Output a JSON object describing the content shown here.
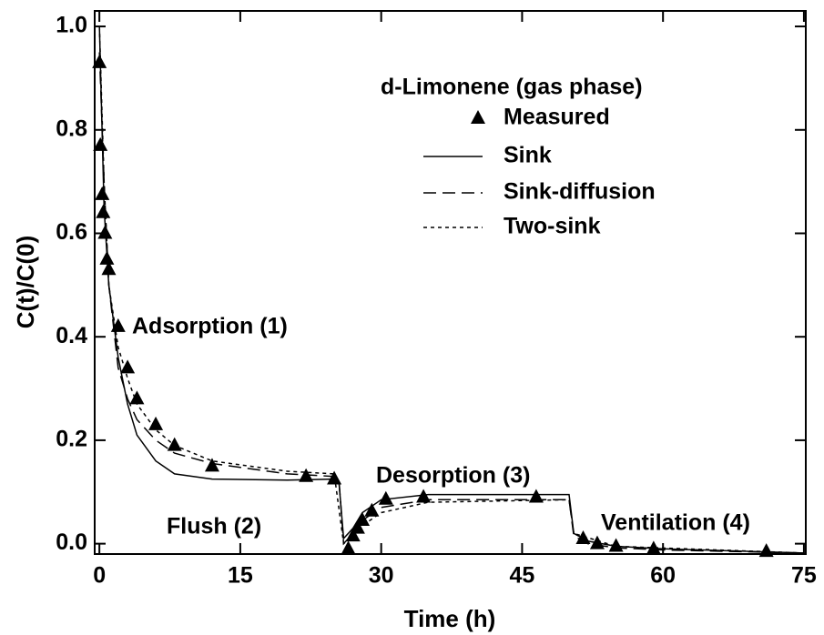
{
  "chart_data": {
    "type": "line",
    "legend_title": "d-Limonene (gas phase)",
    "x_label": "Time (h)",
    "y_label": "C(t)/C(0)",
    "annotations": [
      "Adsorption (1)",
      "Flush (2)",
      "Desorption (3)",
      "Ventilation (4)"
    ],
    "xlim": [
      -0.5,
      75.2
    ],
    "ylim": [
      -0.02,
      1.03
    ],
    "xticks": [
      0,
      15,
      30,
      45,
      60,
      75
    ],
    "yticks": [
      {
        "value": 0,
        "label": "0.0"
      },
      0.2,
      0.4,
      0.6,
      0.8,
      {
        "value": 1,
        "label": "1.0"
      }
    ],
    "series": [
      {
        "name": "Measured",
        "type": "scatter",
        "marker": "triangle",
        "color": "#000000",
        "x": [
          0,
          0.1,
          0.3,
          0.4,
          0.6,
          0.8,
          1,
          2,
          3,
          4,
          6,
          8,
          12,
          22,
          25,
          26.5,
          27,
          27.5,
          28,
          29,
          30.5,
          34.5,
          46.5,
          51.5,
          53,
          55,
          59,
          71
        ],
        "values": [
          0.93,
          0.77,
          0.675,
          0.64,
          0.6,
          0.55,
          0.53,
          0.42,
          0.34,
          0.28,
          0.23,
          0.19,
          0.15,
          0.13,
          0.125,
          -0.01,
          0.015,
          0.03,
          0.045,
          0.063,
          0.086,
          0.09,
          0.09,
          0.01,
          0,
          -0.005,
          -0.01,
          -0.015
        ]
      },
      {
        "name": "Sink",
        "type": "line",
        "style": "solid",
        "color": "#000000",
        "x": [
          0,
          0.5,
          1,
          2,
          3,
          4,
          6,
          8,
          12,
          20,
          25,
          25.5,
          26,
          27,
          28,
          30,
          35,
          50,
          50.5,
          52,
          55,
          60,
          75
        ],
        "values": [
          1.0,
          0.65,
          0.5,
          0.36,
          0.27,
          0.21,
          0.16,
          0.135,
          0.125,
          0.123,
          0.125,
          0.12,
          0.01,
          0.03,
          0.06,
          0.085,
          0.095,
          0.095,
          0.02,
          0.005,
          -0.005,
          -0.01,
          -0.018
        ]
      },
      {
        "name": "Sink-diffusion",
        "type": "line",
        "style": "dashed",
        "color": "#000000",
        "x": [
          0,
          0.5,
          1,
          2,
          3,
          4,
          6,
          8,
          12,
          20,
          25,
          25.5,
          26,
          27,
          28,
          30,
          35,
          50,
          50.5,
          52,
          55,
          60,
          75
        ],
        "values": [
          0.95,
          0.7,
          0.5,
          0.34,
          0.28,
          0.24,
          0.2,
          0.175,
          0.155,
          0.135,
          0.13,
          0.125,
          0,
          0.02,
          0.045,
          0.07,
          0.085,
          0.085,
          0.015,
          0,
          -0.008,
          -0.012,
          -0.018
        ]
      },
      {
        "name": "Two-sink",
        "type": "line",
        "style": "dotted",
        "color": "#000000",
        "x": [
          0,
          0.5,
          1,
          2,
          3,
          4,
          6,
          8,
          12,
          20,
          25,
          26,
          27,
          28,
          30,
          35,
          50,
          50.5,
          55,
          75
        ],
        "values": [
          1.0,
          0.7,
          0.5,
          0.38,
          0.32,
          0.27,
          0.22,
          0.19,
          0.16,
          0.14,
          0.135,
          0,
          0.015,
          0.035,
          0.06,
          0.08,
          0.085,
          0.02,
          -0.005,
          -0.018
        ]
      }
    ]
  }
}
